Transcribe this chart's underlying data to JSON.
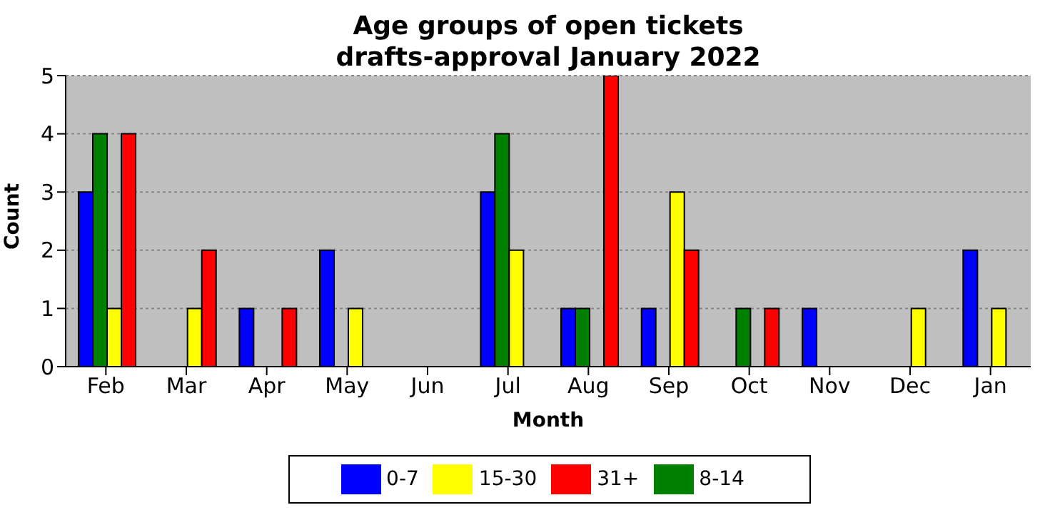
{
  "chart_data": {
    "type": "bar",
    "title": "Age groups of open tickets\ndrafts-approval January 2022",
    "xlabel": "Month",
    "ylabel": "Count",
    "categories": [
      "Feb",
      "Mar",
      "Apr",
      "May",
      "Jun",
      "Jul",
      "Aug",
      "Sep",
      "Oct",
      "Nov",
      "Dec",
      "Jan"
    ],
    "series": [
      {
        "name": "0-7",
        "color": "#0000ff",
        "values": [
          3,
          0,
          1,
          2,
          0,
          3,
          1,
          1,
          0,
          1,
          0,
          2
        ]
      },
      {
        "name": "8-14",
        "color": "#008000",
        "values": [
          4,
          0,
          0,
          0,
          0,
          4,
          1,
          0,
          1,
          0,
          0,
          0
        ]
      },
      {
        "name": "15-30",
        "color": "#ffff00",
        "values": [
          1,
          1,
          0,
          1,
          0,
          2,
          0,
          3,
          0,
          0,
          1,
          1
        ]
      },
      {
        "name": "31+",
        "color": "#ff0000",
        "values": [
          4,
          2,
          1,
          0,
          0,
          0,
          5,
          2,
          1,
          0,
          0,
          0
        ]
      }
    ],
    "ylim": [
      0,
      5
    ],
    "yticks": [
      0,
      1,
      2,
      3,
      4,
      5
    ],
    "grid": "y",
    "legend": "bottom"
  }
}
